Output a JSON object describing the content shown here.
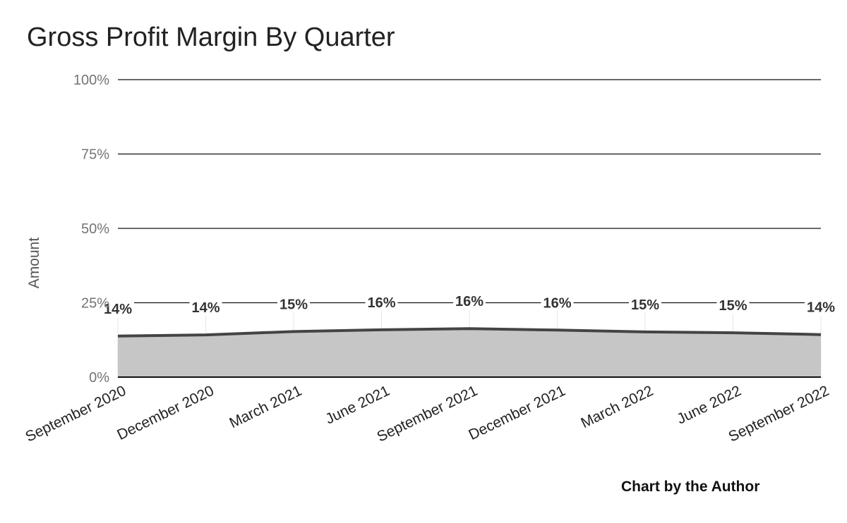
{
  "chart_data": {
    "type": "area",
    "title": "Gross Profit Margin By Quarter",
    "credit": "Chart by the Author",
    "xlabel": "",
    "ylabel": "Amount",
    "categories": [
      "September 2020",
      "December 2020",
      "March 2021",
      "June 2021",
      "September 2021",
      "December 2021",
      "March 2022",
      "June 2022",
      "September 2022"
    ],
    "values": [
      13.8,
      14.2,
      15.3,
      15.9,
      16.3,
      15.8,
      15.2,
      14.9,
      14.3
    ],
    "data_labels": [
      "14%",
      "14%",
      "15%",
      "16%",
      "16%",
      "16%",
      "15%",
      "15%",
      "14%"
    ],
    "yticks": [
      "0%",
      "25%",
      "50%",
      "75%",
      "100%"
    ],
    "ylim": [
      0,
      100
    ],
    "grid": true,
    "legend": "none",
    "colors": {
      "fill": "#c6c6c6",
      "line": "#444444",
      "grid": "#111111",
      "tick_text": "#757575",
      "label_text": "#333333"
    }
  }
}
